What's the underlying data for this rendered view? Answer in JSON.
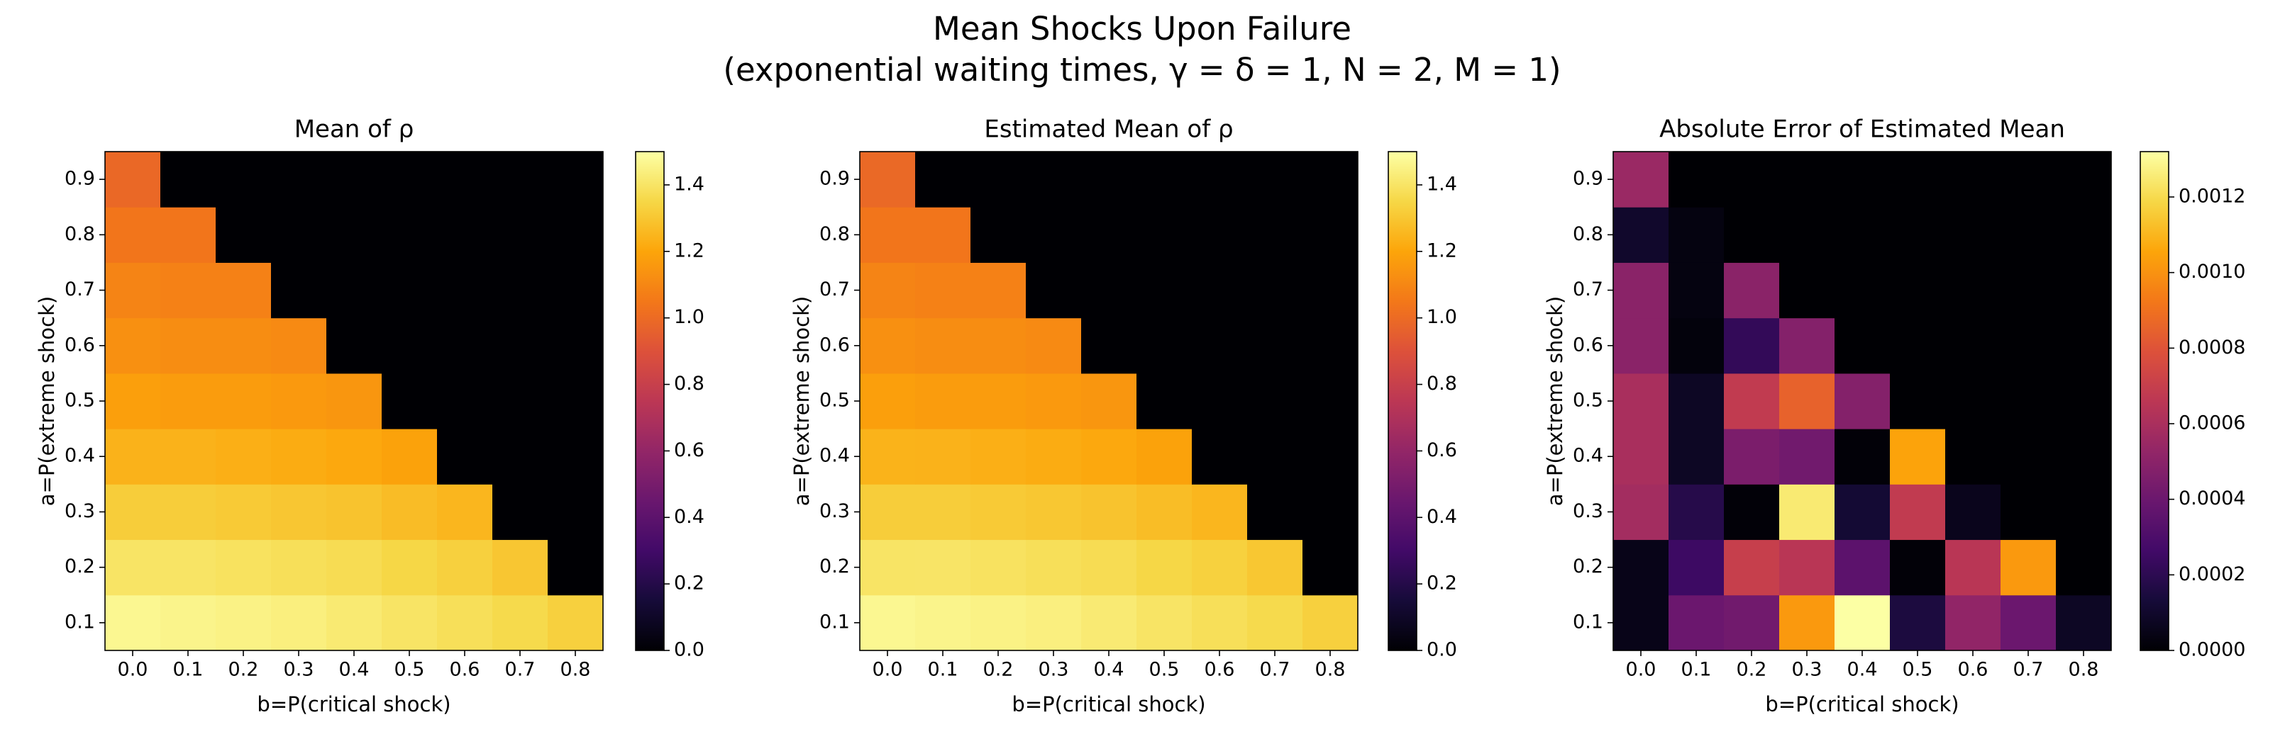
{
  "title": "Mean Shocks Upon Failure",
  "subtitle": "(exponential waiting times, γ = δ = 1, N = 2, M = 1)",
  "chart_data": [
    {
      "type": "heatmap",
      "title": "Mean of ρ",
      "x_label": "b=P(critical shock)",
      "y_label": "a=P(extreme shock)",
      "colormap": "inferno",
      "categories": [
        "0.0",
        "0.1",
        "0.2",
        "0.3",
        "0.4",
        "0.5",
        "0.6",
        "0.7",
        "0.8"
      ],
      "y_categories": [
        "0.1",
        "0.2",
        "0.3",
        "0.4",
        "0.5",
        "0.6",
        "0.7",
        "0.8",
        "0.9"
      ],
      "values": [
        [
          1.47,
          1.46,
          1.45,
          1.44,
          1.42,
          1.4,
          1.38,
          1.36,
          1.33
        ],
        [
          1.4,
          1.4,
          1.39,
          1.38,
          1.37,
          1.35,
          1.33,
          1.3,
          0
        ],
        [
          1.32,
          1.32,
          1.31,
          1.3,
          1.29,
          1.27,
          1.25,
          0,
          0
        ],
        [
          1.24,
          1.24,
          1.23,
          1.22,
          1.21,
          1.19,
          0,
          0,
          0
        ],
        [
          1.18,
          1.17,
          1.17,
          1.16,
          1.15,
          0,
          0,
          0,
          0
        ],
        [
          1.13,
          1.12,
          1.12,
          1.11,
          0,
          0,
          0,
          0,
          0
        ],
        [
          1.09,
          1.08,
          1.08,
          0,
          0,
          0,
          0,
          0,
          0
        ],
        [
          1.04,
          1.04,
          0,
          0,
          0,
          0,
          0,
          0,
          0
        ],
        [
          0.99,
          0,
          0,
          0,
          0,
          0,
          0,
          0,
          0
        ]
      ],
      "clim": [
        0,
        1.5
      ],
      "cticks": [
        {
          "value": 0,
          "label": "0.0"
        },
        0.2,
        0.4,
        0.6,
        0.8,
        {
          "value": 1,
          "label": "1.0"
        },
        1.2,
        1.4
      ]
    },
    {
      "type": "heatmap",
      "title": "Estimated Mean of ρ",
      "x_label": "b=P(critical shock)",
      "y_label": "a=P(extreme shock)",
      "colormap": "inferno",
      "categories": [
        "0.0",
        "0.1",
        "0.2",
        "0.3",
        "0.4",
        "0.5",
        "0.6",
        "0.7",
        "0.8"
      ],
      "y_categories": [
        "0.1",
        "0.2",
        "0.3",
        "0.4",
        "0.5",
        "0.6",
        "0.7",
        "0.8",
        "0.9"
      ],
      "values": [
        [
          1.4701,
          1.4604,
          1.4504,
          1.441,
          1.4213,
          1.4002,
          1.3805,
          1.3604,
          1.3301
        ],
        [
          1.4001,
          1.4003,
          1.3907,
          1.3806,
          1.3703,
          1.35,
          1.3307,
          1.301,
          0
        ],
        [
          1.3206,
          1.3202,
          1.31,
          1.3012,
          1.2901,
          1.2707,
          1.2501,
          0,
          0
        ],
        [
          1.2406,
          1.2401,
          1.2305,
          1.2204,
          1.21,
          1.191,
          0,
          0,
          0
        ],
        [
          1.1806,
          1.1701,
          1.1707,
          1.1608,
          1.1505,
          0,
          0,
          0,
          0
        ],
        [
          1.1305,
          1.12,
          1.1202,
          1.1105,
          0,
          0,
          0,
          0,
          0
        ],
        [
          1.0905,
          1.08,
          1.0805,
          0,
          0,
          0,
          0,
          0,
          0
        ],
        [
          1.0401,
          1.04,
          0,
          0,
          0,
          0,
          0,
          0,
          0
        ],
        [
          0.9905,
          0,
          0,
          0,
          0,
          0,
          0,
          0,
          0
        ]
      ],
      "clim": [
        0,
        1.5
      ],
      "cticks": [
        {
          "value": 0,
          "label": "0.0"
        },
        0.2,
        0.4,
        0.6,
        0.8,
        {
          "value": 1,
          "label": "1.0"
        },
        1.2,
        1.4
      ]
    },
    {
      "type": "heatmap",
      "title": "Absolute Error of Estimated Mean",
      "x_label": "b=P(critical shock)",
      "y_label": "a=P(extreme shock)",
      "colormap": "inferno",
      "categories": [
        "0.0",
        "0.1",
        "0.2",
        "0.3",
        "0.4",
        "0.5",
        "0.6",
        "0.7",
        "0.8"
      ],
      "y_categories": [
        "0.1",
        "0.2",
        "0.3",
        "0.4",
        "0.5",
        "0.6",
        "0.7",
        "0.8",
        "0.9"
      ],
      "values": [
        [
          5e-05,
          0.0004,
          0.00042,
          0.00102,
          0.00132,
          0.00015,
          0.00052,
          0.0004,
          8e-05
        ],
        [
          5e-05,
          0.00025,
          0.0007,
          0.00065,
          0.00035,
          1e-05,
          0.00065,
          0.00102,
          0
        ],
        [
          0.00058,
          0.00018,
          1e-05,
          0.00125,
          0.00012,
          0.00068,
          6e-05,
          0,
          0
        ],
        [
          0.0006,
          8e-05,
          0.00045,
          0.00042,
          1e-05,
          0.00105,
          0,
          0,
          0
        ],
        [
          0.0006,
          8e-05,
          0.00068,
          0.00085,
          0.00048,
          0,
          0,
          0,
          0
        ],
        [
          0.0005,
          2e-05,
          0.00022,
          0.00048,
          0,
          0,
          0,
          0,
          0
        ],
        [
          0.0005,
          3e-05,
          0.0005,
          0,
          0,
          0,
          0,
          0,
          0
        ],
        [
          0.0001,
          3e-05,
          0,
          0,
          0,
          0,
          0,
          0,
          0
        ],
        [
          0.00055,
          0,
          0,
          0,
          0,
          0,
          0,
          0,
          0
        ]
      ],
      "clim": [
        0,
        0.00132
      ],
      "cticks": [
        {
          "value": 0,
          "label": "0.0000"
        },
        0.0002,
        0.0004,
        0.0006,
        0.0008,
        {
          "value": 0.001,
          "label": "0.0010"
        },
        0.0012
      ]
    }
  ]
}
